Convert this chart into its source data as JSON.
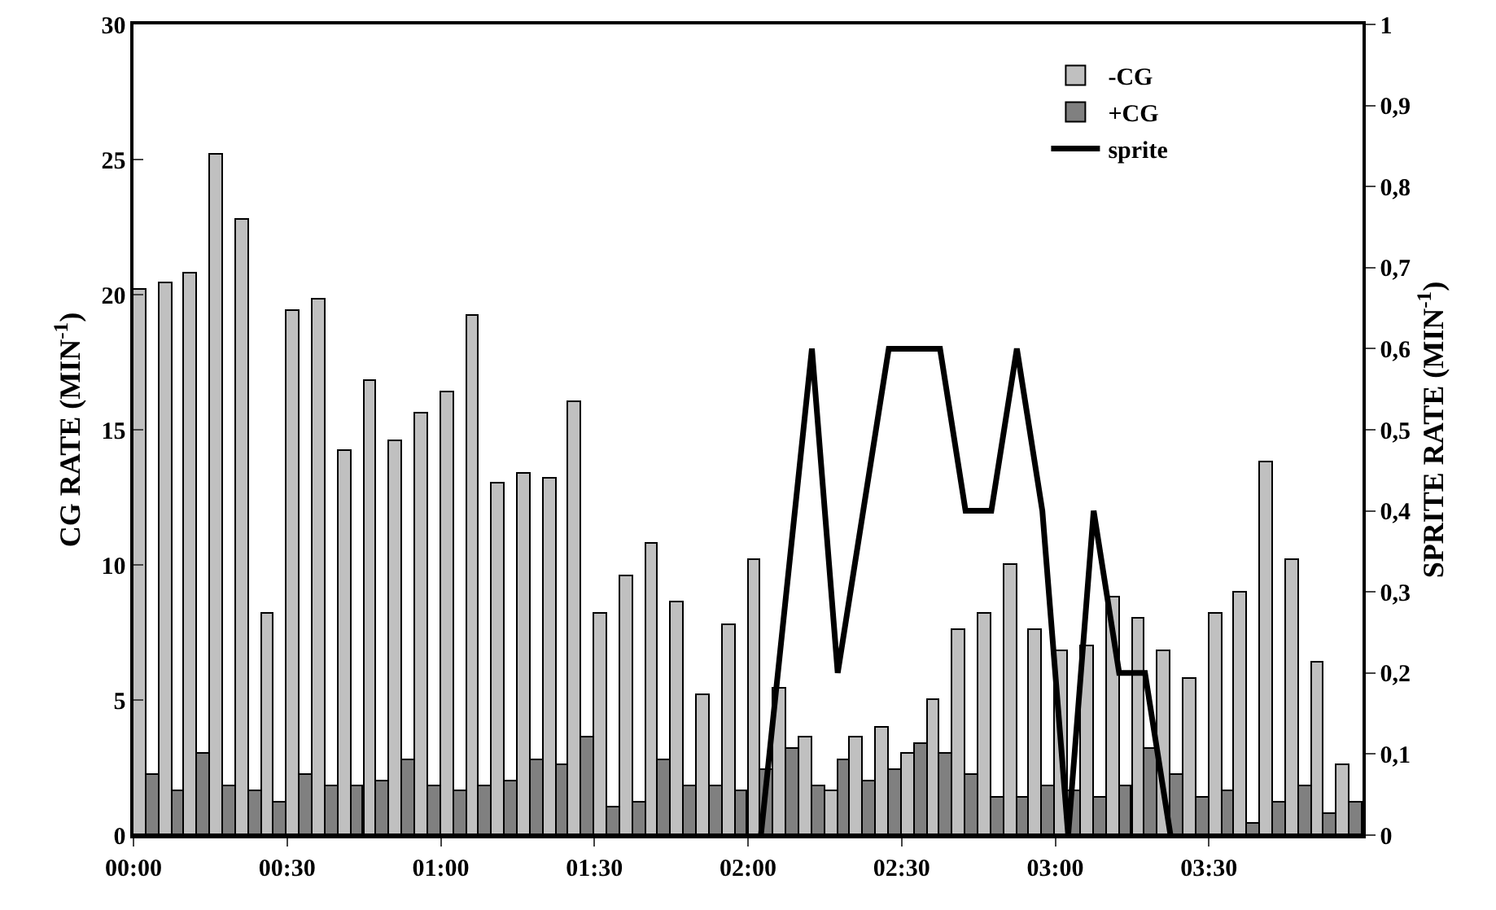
{
  "chart_data": {
    "type": "bar",
    "ylabel": "CG RATE (MIN$^{-1}$)",
    "y2label": "SPRITE RATE (MIN$^{-1}$)",
    "x": [
      0.042,
      0.125,
      0.208,
      0.292,
      0.375,
      0.458,
      0.542,
      0.625,
      0.708,
      0.792,
      0.875,
      0.958,
      1.042,
      1.125,
      1.208,
      1.292,
      1.375,
      1.458,
      1.542,
      1.625,
      1.708,
      1.792,
      1.875,
      1.958,
      2.042,
      2.125,
      2.208,
      2.292,
      2.375,
      2.458,
      2.542,
      2.625,
      2.708,
      2.792,
      2.875,
      2.958,
      3.042,
      3.125,
      3.208,
      3.292,
      3.375,
      3.458,
      3.542,
      3.625,
      3.708,
      3.792,
      3.875,
      3.958
    ],
    "series": [
      {
        "name": "-CG",
        "color": "#c0c0c0",
        "values": [
          20.2,
          20.4,
          20.8,
          25.2,
          22.8,
          8.2,
          19.4,
          19.8,
          14.2,
          16.8,
          14.6,
          15.6,
          16.4,
          19.2,
          13.0,
          13.4,
          13.2,
          16.0,
          8.2,
          9.6,
          10.8,
          8.6,
          5.2,
          7.8,
          10.2,
          5.4,
          3.6,
          1.6,
          3.6,
          4.0,
          3.0,
          5.0,
          7.6,
          8.2,
          10.0,
          7.6,
          6.8,
          7.0,
          8.8,
          8.0,
          6.8,
          5.8,
          8.2,
          9.0,
          13.8,
          10.2,
          6.4,
          2.6
        ]
      },
      {
        "name": "+CG",
        "color": "#808080",
        "values": [
          2.2,
          1.6,
          3.0,
          1.8,
          1.6,
          1.2,
          2.2,
          1.8,
          1.8,
          2.0,
          2.8,
          1.8,
          1.6,
          1.8,
          2.0,
          2.8,
          2.6,
          3.6,
          1.0,
          1.2,
          2.8,
          1.8,
          1.8,
          1.6,
          2.4,
          3.2,
          1.8,
          2.8,
          2.0,
          2.4,
          3.4,
          3.0,
          2.2,
          1.4,
          1.4,
          1.8,
          1.6,
          1.4,
          1.8,
          3.2,
          2.2,
          1.4,
          1.6,
          0.4,
          1.2,
          1.8,
          0.8,
          1.2
        ]
      },
      {
        "name": "sprite",
        "type": "line",
        "axis": "y2",
        "color": "#000000",
        "x": [
          2.042,
          2.208,
          2.292,
          2.458,
          2.625,
          2.708,
          2.792,
          2.875,
          2.958,
          3.042,
          3.125,
          3.208,
          3.292,
          3.375
        ],
        "values": [
          0,
          0.6,
          0.2,
          0.6,
          0.6,
          0.4,
          0.4,
          0.6,
          0.4,
          0,
          0.4,
          0.2,
          0.2,
          0
        ]
      }
    ],
    "xlim": [
      0,
      4
    ],
    "xticks": [
      {
        "value": 0,
        "label": "00:00"
      },
      {
        "value": 0.5,
        "label": "00:30"
      },
      {
        "value": 1,
        "label": "01:00"
      },
      {
        "value": 1.5,
        "label": "01:30"
      },
      {
        "value": 2,
        "label": "02:00"
      },
      {
        "value": 2.5,
        "label": "02:30"
      },
      {
        "value": 3,
        "label": "03:00"
      },
      {
        "value": 3.5,
        "label": "03:30"
      }
    ],
    "ylim": [
      0,
      30
    ],
    "yticks": [
      0,
      5,
      10,
      15,
      20,
      25,
      30
    ],
    "y2lim": [
      0,
      1
    ],
    "y2ticks": [
      0,
      {
        "value": 0.1,
        "label": "0,1"
      },
      {
        "value": 0.2,
        "label": "0,2"
      },
      {
        "value": 0.3,
        "label": "0,3"
      },
      {
        "value": 0.4,
        "label": "0,4"
      },
      {
        "value": 0.5,
        "label": "0,5"
      },
      {
        "value": 0.6,
        "label": "0,6"
      },
      {
        "value": 0.7,
        "label": "0,7"
      },
      {
        "value": 0.8,
        "label": "0,8"
      },
      {
        "value": 0.9,
        "label": "0,9"
      },
      1
    ],
    "grid": false,
    "legend": "top right",
    "marker": "none",
    "line_style": "solid"
  }
}
